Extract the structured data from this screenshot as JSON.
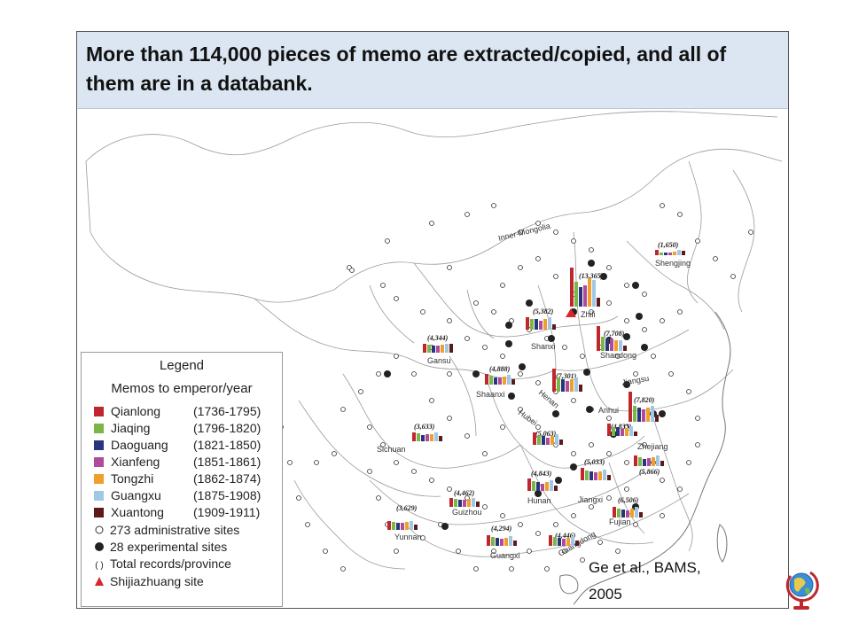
{
  "title": "More than 114,000 pieces of memo are extracted/copied, and all of them are in a databank.",
  "citation_line1": "Ge et al., BAMS,",
  "citation_line2": "2005",
  "legend": {
    "heading": "Legend",
    "subheading": "Memos to emperor/year",
    "reigns": [
      {
        "name": "Qianlong",
        "years": "(1736-1795)",
        "color": "#c0262d"
      },
      {
        "name": "Jiaqing",
        "years": "(1796-1820)",
        "color": "#7ab648"
      },
      {
        "name": "Daoguang",
        "years": "(1821-1850)",
        "color": "#26357e"
      },
      {
        "name": "Xianfeng",
        "years": "(1851-1861)",
        "color": "#b04a9a"
      },
      {
        "name": "Tongzhi",
        "years": "(1862-1874)",
        "color": "#f0a02a"
      },
      {
        "name": "Guangxu",
        "years": "(1875-1908)",
        "color": "#9fc8e8"
      },
      {
        "name": "Xuantong",
        "years": "(1909-1911)",
        "color": "#5c1a1a"
      }
    ],
    "admin_sites": "273 administrative sites",
    "exp_sites": "28 experimental sites",
    "total_records": "Total records/province",
    "shijiazhuang": "Shijiazhuang site"
  },
  "provinces": [
    {
      "name": "Shengjing",
      "total": "(1,650)"
    },
    {
      "name": "Zhili",
      "total": "(13,365)"
    },
    {
      "name": "Shanxi",
      "total": "(5,382)"
    },
    {
      "name": "Shandong",
      "total": "(7,708)"
    },
    {
      "name": "Gansu",
      "total": "(4,344)"
    },
    {
      "name": "Shaanxi",
      "total": "(4,888)"
    },
    {
      "name": "Henan",
      "total": "(7,301)"
    },
    {
      "name": "Jiangsu",
      "total": "(7,820)"
    },
    {
      "name": "Anhui",
      "total": "(4,833)"
    },
    {
      "name": "Sichuan",
      "total": "(3,633)"
    },
    {
      "name": "Hubei",
      "total": "(5,063)"
    },
    {
      "name": "Zhejiang",
      "total": "(5,866)"
    },
    {
      "name": "Jiangxi",
      "total": "(5,033)"
    },
    {
      "name": "Hunan",
      "total": "(4,843)"
    },
    {
      "name": "Guizhou",
      "total": "(4,462)"
    },
    {
      "name": "Fujian",
      "total": "(6,506)"
    },
    {
      "name": "Yunnan",
      "total": "(3,629)"
    },
    {
      "name": "Guangxi",
      "total": "(4,294)"
    },
    {
      "name": "Guangdong",
      "total": "(4,446)"
    }
  ],
  "region_labels": {
    "inner_mongolia": "Inner-Mongolia"
  }
}
